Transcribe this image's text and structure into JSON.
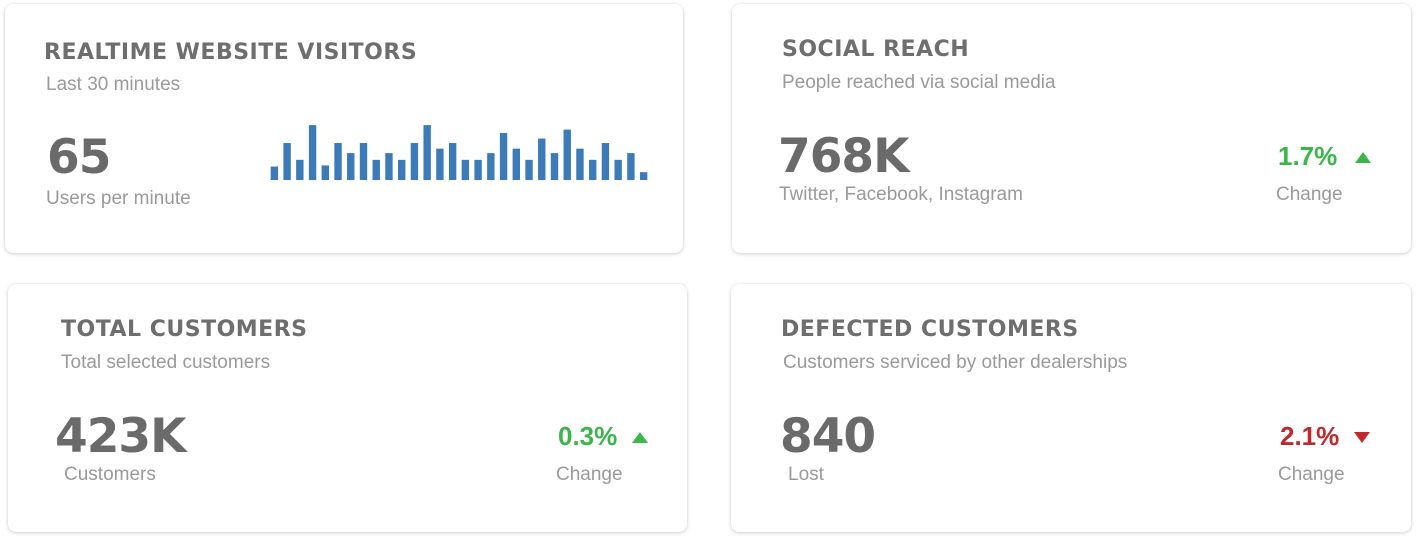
{
  "cards": {
    "visitors": {
      "title": "REALTIME WEBSITE VISITORS",
      "subtitle": "Last 30 minutes",
      "value": "65",
      "caption": "Users per minute"
    },
    "social": {
      "title": "SOCIAL REACH",
      "subtitle": "People reached via social media",
      "value": "768K",
      "caption": "Twitter, Facebook, Instagram",
      "change": "1.7%",
      "change_direction": "up",
      "change_label": "Change"
    },
    "total": {
      "title": "TOTAL CUSTOMERS",
      "subtitle": "Total selected customers",
      "value": "423K",
      "caption": "Customers",
      "change": "0.3%",
      "change_direction": "up",
      "change_label": "Change"
    },
    "defected": {
      "title": "DEFECTED CUSTOMERS",
      "subtitle": "Customers serviced by other dealerships",
      "value": "840",
      "caption": "Lost",
      "change": "2.1%",
      "change_direction": "down",
      "change_label": "Change"
    }
  },
  "colors": {
    "up": "#3cb54a",
    "down": "#c0282d",
    "bar": "#3d7ab8",
    "title": "#6e6e6e",
    "muted": "#9a9a9a"
  },
  "chart_data": {
    "type": "bar",
    "title": "",
    "xlabel": "",
    "ylabel": "",
    "ylim": [
      0,
      50
    ],
    "values": [
      12,
      33,
      18,
      49,
      13,
      33,
      24,
      33,
      18,
      24,
      18,
      33,
      49,
      28,
      33,
      18,
      18,
      24,
      42,
      28,
      18,
      37,
      24,
      45,
      28,
      18,
      33,
      18,
      24,
      7
    ]
  }
}
